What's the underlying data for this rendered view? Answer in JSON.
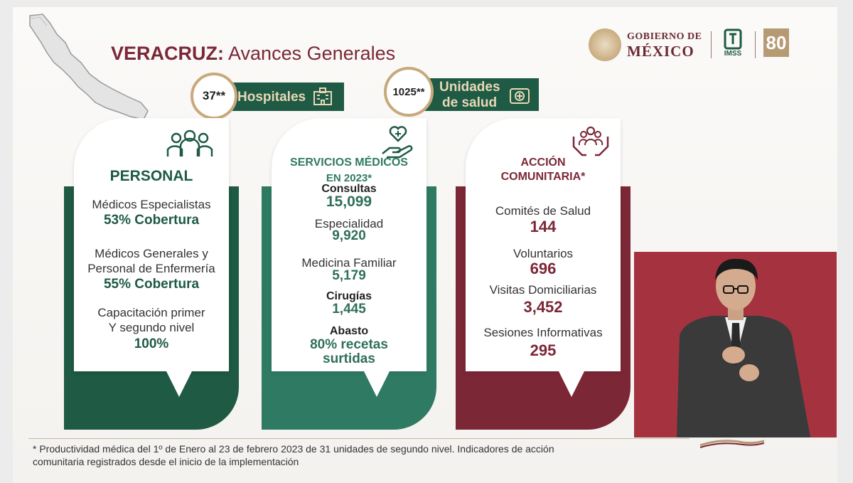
{
  "header": {
    "title_bold": "VERACRUZ:",
    "title_rest": " Avances Generales",
    "gob_line1": "GOBIERNO DE",
    "gob_line2": "MÉXICO",
    "imss": "IMSS",
    "anos": "80"
  },
  "badges": {
    "hospitales_count": "37**",
    "hospitales_label": "Hospitales",
    "unidades_count": "1025**",
    "unidades_label1": "Unidades",
    "unidades_label2": "de salud"
  },
  "personal": {
    "heading": "PERSONAL",
    "item1_label": "Médicos Especialistas",
    "item1_value": "53% Cobertura",
    "item2_label1": "Médicos Generales y",
    "item2_label2": "Personal de Enfermería",
    "item2_value": "55% Cobertura",
    "item3_label1": "Capacitación primer",
    "item3_label2": "Y segundo nivel",
    "item3_value": "100%"
  },
  "servicios": {
    "heading1": "SERVICIOS MÉDICOS",
    "heading2": "EN 2023*",
    "consultas_label": "Consultas",
    "consultas_value": "15,099",
    "especialidad_label": "Especialidad",
    "especialidad_value": "9,920",
    "familiar_label": "Medicina Familiar",
    "familiar_value": "5,179",
    "cirugias_label": "Cirugías",
    "cirugias_value": "1,445",
    "abasto_label": "Abasto",
    "abasto_value1": "80% recetas",
    "abasto_value2": "surtidas"
  },
  "comunitaria": {
    "heading1": "ACCIÓN",
    "heading2": "COMUNITARIA*",
    "comites_label": "Comités de Salud",
    "comites_value": "144",
    "voluntarios_label": "Voluntarios",
    "voluntarios_value": "696",
    "visitas_label": "Visitas Domiciliarias",
    "visitas_value": "3,452",
    "sesiones_label": "Sesiones Informativas",
    "sesiones_value": "295"
  },
  "footer": {
    "note_line1": "* Productividad médica del 1º de Enero al 23 de febrero 2023 de 31 unidades de segundo nivel. Indicadores de acción",
    "note_line2": "comunitaria registrados desde el inicio de la implementación"
  },
  "colors": {
    "green": "#1e5a44",
    "maroon": "#7b2736",
    "gold": "#c8a97c"
  }
}
